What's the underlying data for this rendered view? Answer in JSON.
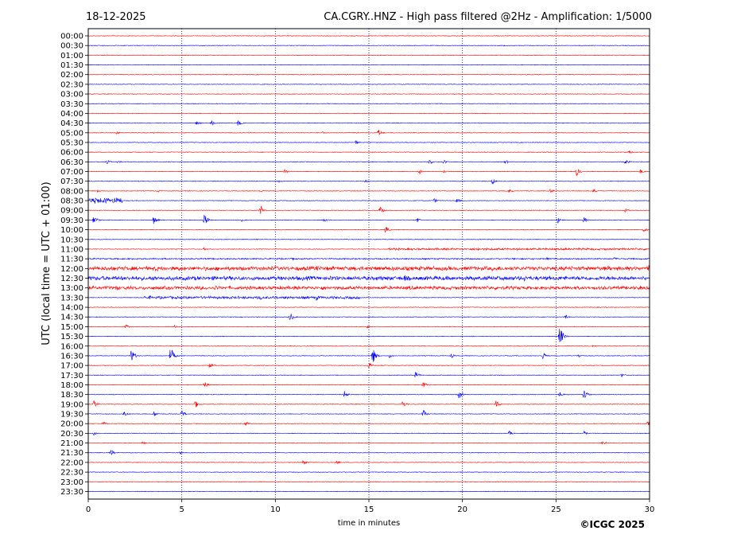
{
  "chart_data": {
    "type": "line",
    "title_left": "18-12-2025",
    "title_right": "CA.CGRY..HNZ - High pass filtered @2Hz - Amplification: 1/5000",
    "xlabel": "time in minutes",
    "ylabel": "UTC (local time = UTC + 01:00)",
    "credit": "©ICGC 2025",
    "xlim": [
      0,
      30
    ],
    "xticks": [
      "0",
      "5",
      "10",
      "15",
      "20",
      "25",
      "30"
    ],
    "yticks": [
      "00:00",
      "00:30",
      "01:00",
      "01:30",
      "02:00",
      "02:30",
      "03:00",
      "03:30",
      "04:00",
      "04:30",
      "05:00",
      "05:30",
      "06:00",
      "06:30",
      "07:00",
      "07:30",
      "08:00",
      "08:30",
      "09:00",
      "09:30",
      "10:00",
      "10:30",
      "11:00",
      "11:30",
      "12:00",
      "12:30",
      "13:00",
      "13:30",
      "14:00",
      "14:30",
      "15:00",
      "15:30",
      "16:00",
      "16:30",
      "17:00",
      "17:30",
      "18:00",
      "18:30",
      "19:00",
      "19:30",
      "20:00",
      "20:30",
      "21:00",
      "21:30",
      "22:00",
      "22:30",
      "23:00",
      "23:30"
    ],
    "grid": "vertical dotted lines every 5 minutes",
    "colors": {
      "even_rows": "#ff0000",
      "odd_rows": "#0000ff"
    },
    "events": [
      {
        "row": 1,
        "t": 22.2,
        "amp": 1
      },
      {
        "row": 9,
        "t": 5.8,
        "amp": 3
      },
      {
        "row": 9,
        "t": 6.6,
        "amp": 5
      },
      {
        "row": 9,
        "t": 8.0,
        "amp": 4
      },
      {
        "row": 10,
        "t": 1.5,
        "amp": 2
      },
      {
        "row": 10,
        "t": 3.5,
        "amp": 1
      },
      {
        "row": 10,
        "t": 12.5,
        "amp": 2
      },
      {
        "row": 10,
        "t": 14.3,
        "amp": 2
      },
      {
        "row": 10,
        "t": 15.5,
        "amp": 5
      },
      {
        "row": 11,
        "t": 14.3,
        "amp": 3
      },
      {
        "row": 12,
        "t": 13.5,
        "amp": 1
      },
      {
        "row": 12,
        "t": 28.9,
        "amp": 3
      },
      {
        "row": 13,
        "t": 1.0,
        "amp": 3
      },
      {
        "row": 13,
        "t": 1.6,
        "amp": 2
      },
      {
        "row": 13,
        "t": 18.2,
        "amp": 4
      },
      {
        "row": 13,
        "t": 19.0,
        "amp": 3
      },
      {
        "row": 13,
        "t": 22.3,
        "amp": 3
      },
      {
        "row": 13,
        "t": 28.7,
        "amp": 4
      },
      {
        "row": 14,
        "t": 10.5,
        "amp": 3
      },
      {
        "row": 14,
        "t": 17.7,
        "amp": 3
      },
      {
        "row": 14,
        "t": 19.0,
        "amp": 2
      },
      {
        "row": 14,
        "t": 26.1,
        "amp": 6
      },
      {
        "row": 14,
        "t": 29.5,
        "amp": 3
      },
      {
        "row": 15,
        "t": 10.2,
        "amp": 2
      },
      {
        "row": 15,
        "t": 14.8,
        "amp": 2
      },
      {
        "row": 15,
        "t": 21.6,
        "amp": 4
      },
      {
        "row": 16,
        "t": 0.5,
        "amp": 2
      },
      {
        "row": 16,
        "t": 3.7,
        "amp": 2
      },
      {
        "row": 16,
        "t": 9.2,
        "amp": 2
      },
      {
        "row": 16,
        "t": 22.5,
        "amp": 3
      },
      {
        "row": 16,
        "t": 24.7,
        "amp": 3
      },
      {
        "row": 16,
        "t": 27.0,
        "amp": 3
      },
      {
        "row": 17,
        "t": 0.8,
        "amp": 3
      },
      {
        "row": 17,
        "t": 18.5,
        "amp": 3
      },
      {
        "row": 17,
        "t": 19.7,
        "amp": 3
      },
      {
        "row": 18,
        "t": 9.2,
        "amp": 7
      },
      {
        "row": 18,
        "t": 15.6,
        "amp": 6
      },
      {
        "row": 18,
        "t": 28.7,
        "amp": 3
      },
      {
        "row": 19,
        "t": 0.3,
        "amp": 7
      },
      {
        "row": 19,
        "t": 3.5,
        "amp": 6
      },
      {
        "row": 19,
        "t": 6.2,
        "amp": 9
      },
      {
        "row": 19,
        "t": 8.2,
        "amp": 2
      },
      {
        "row": 19,
        "t": 12.6,
        "amp": 3
      },
      {
        "row": 19,
        "t": 17.6,
        "amp": 3
      },
      {
        "row": 19,
        "t": 25.1,
        "amp": 4
      },
      {
        "row": 19,
        "t": 26.5,
        "amp": 4
      },
      {
        "row": 20,
        "t": 15.9,
        "amp": 5
      },
      {
        "row": 20,
        "t": 29.7,
        "amp": 3
      },
      {
        "row": 21,
        "t": 9.0,
        "amp": 1
      },
      {
        "row": 22,
        "t": 6.2,
        "amp": 2
      },
      {
        "row": 22,
        "t": 16.3,
        "amp": 2
      },
      {
        "row": 22,
        "t": 20.8,
        "amp": 3
      },
      {
        "row": 23,
        "t": 10.9,
        "amp": 2
      },
      {
        "row": 23,
        "t": 24.5,
        "amp": 2
      },
      {
        "row": 23,
        "t": 28.1,
        "amp": 2
      },
      {
        "row": 24,
        "t": 3.6,
        "amp": 4
      },
      {
        "row": 24,
        "t": 12.2,
        "amp": 4
      },
      {
        "row": 24,
        "t": 14.5,
        "amp": 4
      },
      {
        "row": 24,
        "t": 22.0,
        "amp": 4
      },
      {
        "row": 24,
        "t": 27.8,
        "amp": 4
      },
      {
        "row": 24,
        "t": 29.9,
        "amp": 7
      },
      {
        "row": 25,
        "t": 3.5,
        "amp": 4
      },
      {
        "row": 25,
        "t": 13.0,
        "amp": 4
      },
      {
        "row": 25,
        "t": 16.9,
        "amp": 5
      },
      {
        "row": 25,
        "t": 23.3,
        "amp": 5
      },
      {
        "row": 25,
        "t": 26.6,
        "amp": 3
      },
      {
        "row": 25,
        "t": 29.8,
        "amp": 4
      },
      {
        "row": 26,
        "t": 1.5,
        "amp": 5
      },
      {
        "row": 26,
        "t": 6.8,
        "amp": 4
      },
      {
        "row": 26,
        "t": 12.5,
        "amp": 4
      },
      {
        "row": 26,
        "t": 17.2,
        "amp": 3
      },
      {
        "row": 26,
        "t": 29.5,
        "amp": 3
      },
      {
        "row": 27,
        "t": 3.3,
        "amp": 3
      },
      {
        "row": 27,
        "t": 9.2,
        "amp": 3
      },
      {
        "row": 27,
        "t": 12.2,
        "amp": 4
      },
      {
        "row": 29,
        "t": 10.8,
        "amp": 6
      },
      {
        "row": 29,
        "t": 25.5,
        "amp": 3
      },
      {
        "row": 30,
        "t": 2.0,
        "amp": 3
      },
      {
        "row": 30,
        "t": 4.6,
        "amp": 2
      },
      {
        "row": 30,
        "t": 14.9,
        "amp": 2
      },
      {
        "row": 31,
        "t": 25.2,
        "amp": 14
      },
      {
        "row": 32,
        "t": 27.0,
        "amp": 2
      },
      {
        "row": 33,
        "t": 2.3,
        "amp": 10
      },
      {
        "row": 33,
        "t": 4.4,
        "amp": 12
      },
      {
        "row": 33,
        "t": 15.2,
        "amp": 11
      },
      {
        "row": 33,
        "t": 16.1,
        "amp": 3
      },
      {
        "row": 33,
        "t": 19.4,
        "amp": 3
      },
      {
        "row": 33,
        "t": 24.3,
        "amp": 5
      },
      {
        "row": 33,
        "t": 26.2,
        "amp": 3
      },
      {
        "row": 34,
        "t": 6.5,
        "amp": 4
      },
      {
        "row": 34,
        "t": 15.0,
        "amp": 4
      },
      {
        "row": 35,
        "t": 17.5,
        "amp": 5
      },
      {
        "row": 35,
        "t": 28.5,
        "amp": 3
      },
      {
        "row": 36,
        "t": 6.2,
        "amp": 5
      },
      {
        "row": 36,
        "t": 17.9,
        "amp": 4
      },
      {
        "row": 37,
        "t": 13.7,
        "amp": 5
      },
      {
        "row": 37,
        "t": 19.8,
        "amp": 8
      },
      {
        "row": 37,
        "t": 25.2,
        "amp": 4
      },
      {
        "row": 37,
        "t": 26.5,
        "amp": 7
      },
      {
        "row": 38,
        "t": 0.3,
        "amp": 5
      },
      {
        "row": 38,
        "t": 5.7,
        "amp": 6
      },
      {
        "row": 38,
        "t": 16.8,
        "amp": 5
      },
      {
        "row": 38,
        "t": 21.8,
        "amp": 5
      },
      {
        "row": 39,
        "t": 1.9,
        "amp": 5
      },
      {
        "row": 39,
        "t": 3.5,
        "amp": 4
      },
      {
        "row": 39,
        "t": 5.0,
        "amp": 5
      },
      {
        "row": 39,
        "t": 17.9,
        "amp": 6
      },
      {
        "row": 40,
        "t": 0.8,
        "amp": 3
      },
      {
        "row": 40,
        "t": 8.4,
        "amp": 4
      },
      {
        "row": 40,
        "t": 29.9,
        "amp": 5
      },
      {
        "row": 41,
        "t": 0.3,
        "amp": 3
      },
      {
        "row": 41,
        "t": 22.5,
        "amp": 3
      },
      {
        "row": 41,
        "t": 26.5,
        "amp": 3
      },
      {
        "row": 42,
        "t": 2.9,
        "amp": 2
      },
      {
        "row": 42,
        "t": 27.5,
        "amp": 4
      },
      {
        "row": 43,
        "t": 1.2,
        "amp": 5
      },
      {
        "row": 43,
        "t": 4.9,
        "amp": 2
      },
      {
        "row": 44,
        "t": 11.5,
        "amp": 4
      },
      {
        "row": 44,
        "t": 13.3,
        "amp": 2
      }
    ],
    "bursts": [
      {
        "row": 17,
        "t0": 0.0,
        "t1": 1.8,
        "amp": 4
      },
      {
        "row": 22,
        "t0": 16.0,
        "t1": 30.0,
        "amp": 1.5
      },
      {
        "row": 23,
        "t0": 0.0,
        "t1": 30.0,
        "amp": 1
      },
      {
        "row": 24,
        "t0": 0.0,
        "t1": 30.0,
        "amp": 3
      },
      {
        "row": 25,
        "t0": 0.0,
        "t1": 30.0,
        "amp": 3
      },
      {
        "row": 26,
        "t0": 0.0,
        "t1": 30.0,
        "amp": 2.5
      },
      {
        "row": 27,
        "t0": 3.0,
        "t1": 14.5,
        "amp": 2
      }
    ]
  }
}
